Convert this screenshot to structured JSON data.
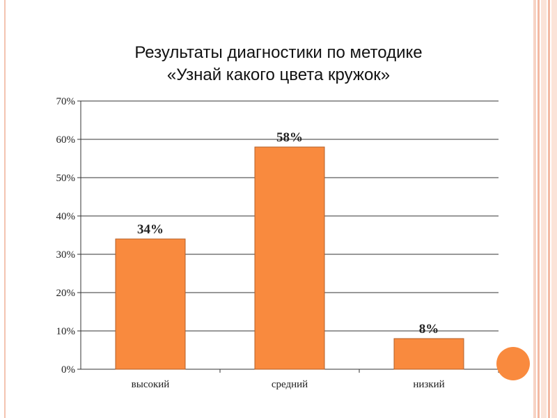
{
  "colors": {
    "bar": "#f98a3e",
    "bar_stroke": "#b4602a",
    "grid": "#333333",
    "accent_circle": "#f98a3e",
    "stripe": "#f3b9a3"
  },
  "slide": {
    "title_line1": "Результаты диагностики по методике",
    "title_line2": "«Узнай какого цвета кружок»"
  },
  "chart_data": {
    "type": "bar",
    "title": "Результаты диагностики по методике «Узнай какого цвета кружок»",
    "categories": [
      "высокий",
      "средний",
      "низкий"
    ],
    "values": [
      34,
      58,
      8
    ],
    "data_labels": [
      "34%",
      "58%",
      "8%"
    ],
    "ylim": [
      0,
      70
    ],
    "y_ticks": [
      0,
      10,
      20,
      30,
      40,
      50,
      60,
      70
    ],
    "y_tick_labels": [
      "0%",
      "10%",
      "20%",
      "30%",
      "40%",
      "50%",
      "60%",
      "70%"
    ],
    "grid": true,
    "legend": "none"
  }
}
